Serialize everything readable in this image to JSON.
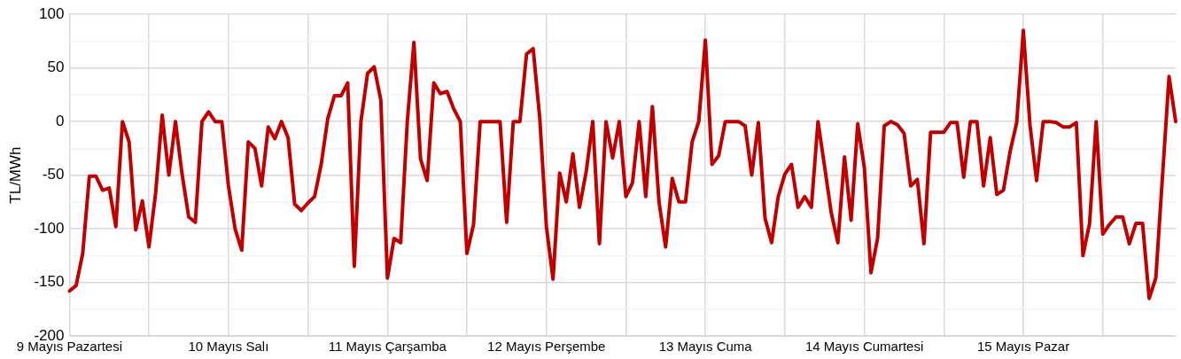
{
  "chart_data": {
    "type": "line",
    "ylabel": "TL/MWh",
    "categories": [
      "9 Mayıs Pazartesi",
      null,
      null,
      null,
      null,
      null,
      null,
      null,
      null,
      null,
      null,
      null,
      null,
      null,
      null,
      null,
      null,
      null,
      null,
      null,
      null,
      null,
      null,
      null,
      "10 Mayıs Salı",
      null,
      null,
      null,
      null,
      null,
      null,
      null,
      null,
      null,
      null,
      null,
      null,
      null,
      null,
      null,
      null,
      null,
      null,
      null,
      null,
      null,
      null,
      null,
      "11 Mayıs Çarşamba",
      null,
      null,
      null,
      null,
      null,
      null,
      null,
      null,
      null,
      null,
      null,
      null,
      null,
      null,
      null,
      null,
      null,
      null,
      null,
      null,
      null,
      null,
      null,
      "12 Mayıs Perşembe",
      null,
      null,
      null,
      null,
      null,
      null,
      null,
      null,
      null,
      null,
      null,
      null,
      null,
      null,
      null,
      null,
      null,
      null,
      null,
      null,
      null,
      null,
      null,
      "13 Mayıs Cuma",
      null,
      null,
      null,
      null,
      null,
      null,
      null,
      null,
      null,
      null,
      null,
      null,
      null,
      null,
      null,
      null,
      null,
      null,
      null,
      null,
      null,
      null,
      null,
      "14 Mayıs Cumartesi",
      null,
      null,
      null,
      null,
      null,
      null,
      null,
      null,
      null,
      null,
      null,
      null,
      null,
      null,
      null,
      null,
      null,
      null,
      null,
      null,
      null,
      null,
      null,
      "15 Mayıs Pazar",
      null,
      null,
      null,
      null,
      null,
      null,
      null,
      null,
      null,
      null,
      null,
      null,
      null,
      null,
      null,
      null,
      null,
      null,
      null,
      null,
      null,
      null,
      null
    ],
    "series": [
      {
        "color": "#c00000",
        "values": [
          -158,
          -153,
          -123,
          -51,
          -51,
          -64,
          -62,
          -98,
          0,
          -19,
          -101,
          -74,
          -117,
          -67,
          6,
          -50,
          0,
          -49,
          -89,
          -94,
          0,
          9,
          0,
          0,
          -60,
          -100,
          -120,
          -19,
          -25,
          -60,
          -5,
          -16,
          0,
          -15,
          -77,
          -83,
          -76,
          -70,
          -40,
          3,
          24,
          24,
          36,
          -135,
          0,
          45,
          51,
          20,
          -146,
          -109,
          -113,
          0,
          74,
          -35,
          -55,
          36,
          26,
          28,
          12,
          0,
          -123,
          -96,
          0,
          0,
          0,
          0,
          -94,
          0,
          0,
          63,
          68,
          3,
          -98,
          -147,
          -48,
          -75,
          -30,
          -80,
          -47,
          0,
          -114,
          0,
          -34,
          0,
          -70,
          -57,
          0,
          -70,
          14,
          -75,
          -117,
          -53,
          -75,
          -75,
          -19,
          0,
          76,
          -40,
          -32,
          0,
          0,
          0,
          -4,
          -50,
          -1,
          -90,
          -113,
          -70,
          -49,
          -40,
          -80,
          -70,
          -80,
          0,
          -42,
          -85,
          -113,
          -33,
          -92,
          -2,
          -43,
          -141,
          -109,
          -4,
          0,
          -3,
          -11,
          -60,
          -54,
          -114,
          -10,
          -10,
          -10,
          -1,
          -1,
          -52,
          0,
          0,
          -60,
          -15,
          -68,
          -64,
          -28,
          -1,
          85,
          -3,
          -55,
          0,
          0,
          -1,
          -5,
          -5,
          -1,
          -125,
          -95,
          0,
          -105,
          -96,
          -89,
          -89,
          -114,
          -95,
          -95,
          -165,
          -146,
          -52,
          42,
          0
        ]
      }
    ],
    "ylim": [
      -200,
      100
    ],
    "yticks": [
      -200,
      {
        "value": -175,
        "label": null
      },
      -150,
      {
        "value": -125,
        "label": null
      },
      -100,
      {
        "value": -75,
        "label": null
      },
      -50,
      {
        "value": -25,
        "label": null
      },
      0,
      {
        "value": 25,
        "label": null
      },
      50,
      {
        "value": 75,
        "label": null
      },
      100
    ],
    "grid": true,
    "marker": "none",
    "line_style": "solid",
    "legend": false
  }
}
